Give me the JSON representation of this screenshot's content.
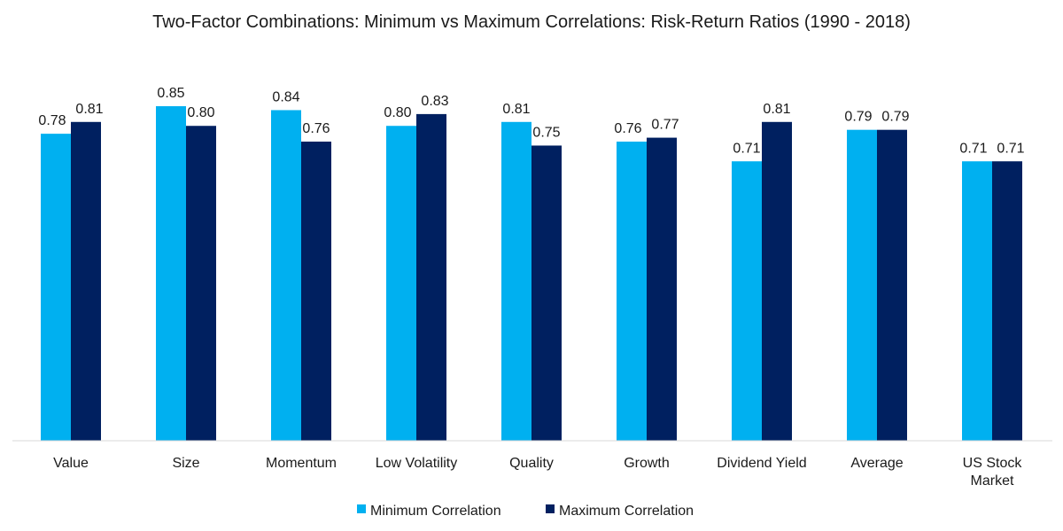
{
  "chart_data": {
    "type": "bar",
    "title": "Two-Factor Combinations: Minimum vs Maximum Correlations: Risk-Return Ratios (1990 - 2018)",
    "categories": [
      [
        "Value"
      ],
      [
        "Size"
      ],
      [
        "Momentum"
      ],
      [
        "Low Volatility"
      ],
      [
        "Quality"
      ],
      [
        "Growth"
      ],
      [
        "Dividend Yield"
      ],
      [
        "Average"
      ],
      [
        "US Stock",
        "Market"
      ]
    ],
    "series": [
      {
        "name": "Minimum Correlation",
        "color": "#00b0f0",
        "values": [
          0.78,
          0.85,
          0.84,
          0.8,
          0.81,
          0.76,
          0.71,
          0.79,
          0.71
        ],
        "labels": [
          "0.78",
          "0.85",
          "0.84",
          "0.80",
          "0.81",
          "0.76",
          "0.71",
          "0.79",
          "0.71"
        ]
      },
      {
        "name": "Maximum Correlation",
        "color": "#002060",
        "values": [
          0.81,
          0.8,
          0.76,
          0.83,
          0.75,
          0.77,
          0.81,
          0.79,
          0.71
        ],
        "labels": [
          "0.81",
          "0.80",
          "0.76",
          "0.83",
          "0.75",
          "0.77",
          "0.81",
          "0.79",
          "0.71"
        ]
      }
    ],
    "ylim": [
      0,
      0.85
    ],
    "grid": false,
    "legend_position": "bottom"
  }
}
